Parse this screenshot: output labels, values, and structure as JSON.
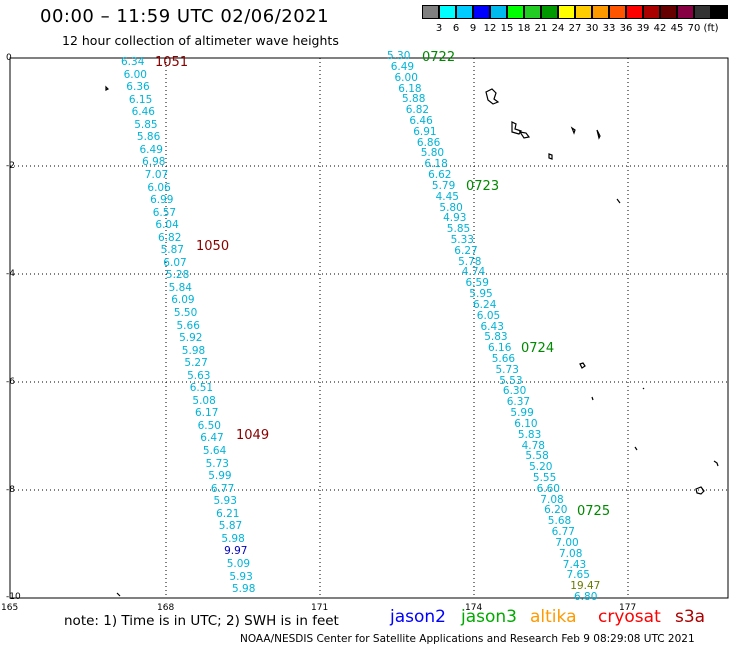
{
  "title": "00:00 – 11:59 UTC 02/06/2021",
  "subtitle": "12 hour collection of altimeter wave heights",
  "scale": {
    "colors": [
      "#808080",
      "#00ffff",
      "#00ccff",
      "#0000ff",
      "#00bbee",
      "#00ff00",
      "#22cc22",
      "#009900",
      "#ffff00",
      "#ffcc00",
      "#ff9900",
      "#ff5500",
      "#ff0000",
      "#aa0000",
      "#660000",
      "#880044",
      "#333333",
      "#000000"
    ],
    "labels": [
      "3",
      "6",
      "9",
      "12",
      "15",
      "18",
      "21",
      "24",
      "27",
      "30",
      "33",
      "36",
      "39",
      "42",
      "45",
      "70",
      "(ft)"
    ]
  },
  "y_ticks": [
    "0",
    "-2",
    "-4",
    "-6",
    "-8",
    "-10"
  ],
  "x_ticks": [
    "165",
    "168",
    "171",
    "174",
    "177"
  ],
  "track_left": {
    "values": [
      "6.34",
      "6.00",
      "6.36",
      "6.15",
      "6.46",
      "5.85",
      "5.86",
      "6.49",
      "6.98",
      "7.07",
      "6.06",
      "6.99",
      "6.57",
      "6.04",
      "6.82",
      "5.87",
      "6.07",
      "5.28",
      "5.84",
      "6.09",
      "5.50",
      "5.66",
      "5.92",
      "5.98",
      "5.27",
      "5.63",
      "6.51",
      "5.08",
      "6.17",
      "6.50",
      "6.47",
      "5.64",
      "5.73",
      "5.99",
      "6.77",
      "5.93",
      "6.21",
      "5.87",
      "5.98",
      "9.97",
      "5.09",
      "5.93",
      "5.98"
    ]
  },
  "track_right": {
    "values": [
      "5.30",
      "6.49",
      "6.00",
      "6.18",
      "5.88",
      "6.82",
      "6.46",
      "6.91",
      "6.86",
      "5.80",
      "6.18",
      "6.62",
      "5.79",
      "4.45",
      "5.80",
      "4.93",
      "5.85",
      "5.33",
      "6.27",
      "5.78",
      "4.74",
      "6.59",
      "5.95",
      "6.24",
      "6.05",
      "6.43",
      "5.83",
      "6.16",
      "5.66",
      "5.73",
      "5.53",
      "6.30",
      "6.37",
      "5.99",
      "6.10",
      "5.83",
      "4.78",
      "5.58",
      "5.20",
      "5.55",
      "6.60",
      "7.08",
      "6.20",
      "5.68",
      "6.77",
      "7.00",
      "7.08",
      "7.43",
      "7.65",
      "19.47",
      "6.80"
    ]
  },
  "pass_labels_left": [
    "1051",
    "1050",
    "1049"
  ],
  "pass_labels_right": [
    "0722",
    "0723",
    "0724",
    "0725"
  ],
  "note": "note:  1) Time is in UTC;  2) SWH is in feet",
  "legend": [
    {
      "label": "jason2",
      "color": "#0000ff"
    },
    {
      "label": "jason3",
      "color": "#00aa00"
    },
    {
      "label": "altika",
      "color": "#ff9900"
    },
    {
      "label": "cryosat",
      "color": "#ff0000"
    },
    {
      "label": "s3a",
      "color": "#aa0000"
    }
  ],
  "footer": "NOAA/NESDIS Center for Satellite Applications and Research    Feb  9 08:29:08 UTC 2021"
}
